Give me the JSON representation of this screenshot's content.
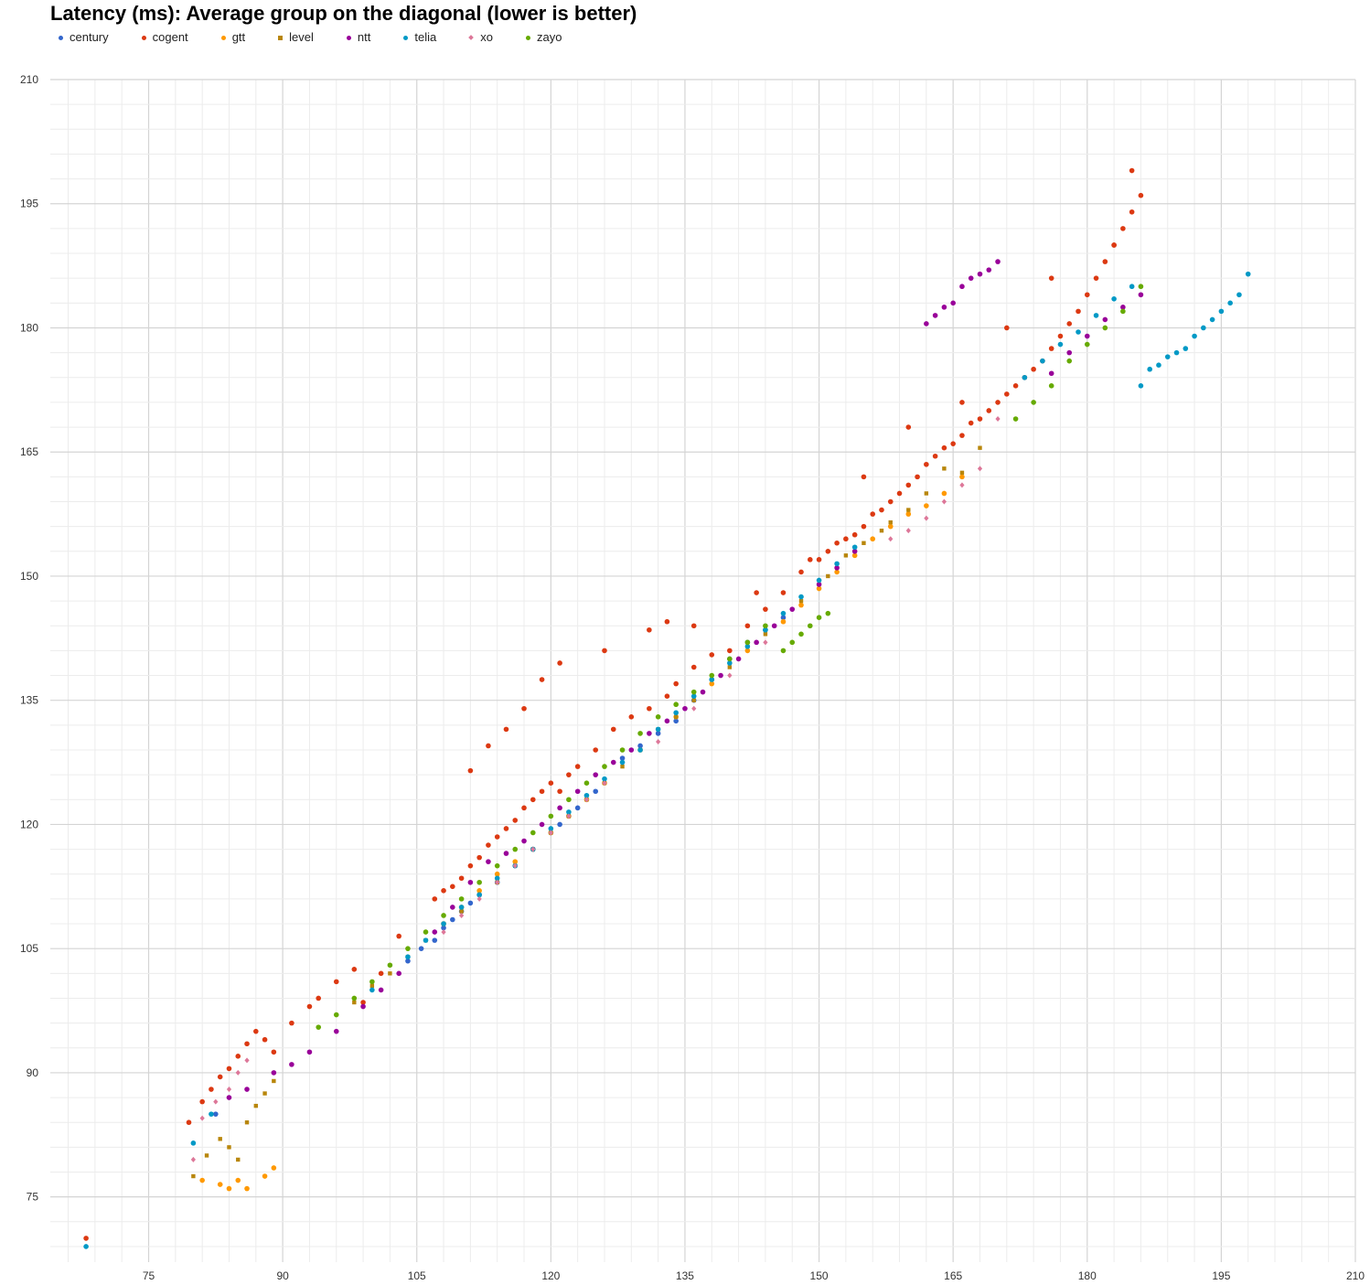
{
  "chart_data": {
    "type": "scatter",
    "title": "Latency (ms): Average group on the diagonal (lower is better)",
    "xlabel": "",
    "ylabel": "",
    "xlim": [
      64,
      210
    ],
    "ylim": [
      68,
      210
    ],
    "xticks": [
      75,
      90,
      105,
      120,
      135,
      150,
      165,
      180,
      195,
      210
    ],
    "yticks": [
      75,
      90,
      105,
      120,
      135,
      150,
      165,
      180,
      195,
      210
    ],
    "grid": true,
    "legend_position": "top-left",
    "series": [
      {
        "name": "century",
        "color": "#3366CC",
        "marker": "circle",
        "x": [
          82.5,
          104.0,
          105.5,
          107.0,
          108.0,
          109.0,
          110.0,
          111.0,
          112.0,
          114.0,
          116.0,
          118.0,
          120.0,
          121.0,
          122.0,
          123.0,
          125.0,
          128.0,
          130.0,
          132.0,
          134.0,
          136.0,
          138.0,
          140.0,
          142.0,
          144.0,
          146.0
        ],
        "y": [
          85.0,
          103.5,
          105.0,
          106.0,
          107.5,
          108.5,
          109.5,
          110.5,
          111.5,
          113.0,
          115.0,
          117.0,
          119.0,
          120.0,
          121.0,
          122.0,
          124.0,
          128.0,
          129.5,
          131.0,
          132.5,
          135.0,
          137.5,
          140.0,
          142.0,
          143.5,
          145.0
        ]
      },
      {
        "name": "cogent",
        "color": "#DC3912",
        "marker": "circle",
        "x": [
          68.0,
          79.5,
          81.0,
          82.0,
          83.0,
          84.0,
          85.0,
          86.0,
          87.0,
          88.0,
          89.0,
          91.0,
          93.0,
          94.0,
          96.0,
          98.0,
          99.0,
          101.0,
          103.0,
          107.0,
          108.0,
          109.0,
          110.0,
          111.0,
          112.0,
          113.0,
          114.0,
          115.0,
          116.0,
          117.0,
          118.0,
          119.0,
          120.0,
          121.0,
          122.0,
          123.0,
          125.0,
          127.0,
          129.0,
          131.0,
          133.0,
          134.0,
          136.0,
          138.0,
          140.0,
          142.0,
          144.0,
          146.0,
          148.0,
          150.0,
          151.0,
          152.0,
          153.0,
          154.0,
          155.0,
          156.0,
          157.0,
          158.0,
          159.0,
          160.0,
          161.0,
          162.0,
          163.0,
          164.0,
          165.0,
          166.0,
          167.0,
          168.0,
          169.0,
          170.0,
          171.0,
          172.0,
          173.0,
          174.0,
          175.0,
          176.0,
          177.0,
          178.0,
          179.0,
          180.0,
          181.0,
          182.0,
          183.0,
          184.0,
          185.0,
          186.0,
          111.0,
          113.0,
          115.0,
          117.0,
          119.0,
          121.0,
          126.0,
          131.0,
          133.0,
          136.0,
          143.0,
          149.0,
          155.0,
          160.0,
          166.0,
          171.0,
          176.0,
          183.0,
          185.0
        ],
        "y": [
          70.0,
          84.0,
          86.5,
          88.0,
          89.5,
          90.5,
          92.0,
          93.5,
          95.0,
          94.0,
          92.5,
          96.0,
          98.0,
          99.0,
          101.0,
          102.5,
          98.5,
          102.0,
          106.5,
          111.0,
          112.0,
          112.5,
          113.5,
          115.0,
          116.0,
          117.5,
          118.5,
          119.5,
          120.5,
          122.0,
          123.0,
          124.0,
          125.0,
          124.0,
          126.0,
          127.0,
          129.0,
          131.5,
          133.0,
          134.0,
          135.5,
          137.0,
          139.0,
          140.5,
          141.0,
          144.0,
          146.0,
          148.0,
          150.5,
          152.0,
          153.0,
          154.0,
          154.5,
          155.0,
          156.0,
          157.5,
          158.0,
          159.0,
          160.0,
          161.0,
          162.0,
          163.5,
          164.5,
          165.5,
          166.0,
          167.0,
          168.5,
          169.0,
          170.0,
          171.0,
          172.0,
          173.0,
          174.0,
          175.0,
          176.0,
          177.5,
          179.0,
          180.5,
          182.0,
          184.0,
          186.0,
          188.0,
          190.0,
          192.0,
          194.0,
          196.0,
          126.5,
          129.5,
          131.5,
          134.0,
          137.5,
          139.5,
          141.0,
          143.5,
          144.5,
          144.0,
          148.0,
          152.0,
          162.0,
          168.0,
          171.0,
          180.0,
          186.0,
          190.0,
          199.0
        ]
      },
      {
        "name": "gtt",
        "color": "#FF9900",
        "marker": "circle",
        "x": [
          81.0,
          83.0,
          84.0,
          85.0,
          86.0,
          88.0,
          89.0,
          108.0,
          110.0,
          112.0,
          114.0,
          116.0,
          118.0,
          120.0,
          122.0,
          124.0,
          126.0,
          130.0,
          134.0,
          138.0,
          142.0,
          146.0,
          148.0,
          150.0,
          152.0,
          154.0,
          156.0,
          158.0,
          160.0,
          162.0,
          164.0,
          166.0
        ],
        "y": [
          77.0,
          76.5,
          76.0,
          77.0,
          76.0,
          77.5,
          78.5,
          108.0,
          110.0,
          112.0,
          114.0,
          115.5,
          117.0,
          119.0,
          121.0,
          123.0,
          125.0,
          129.0,
          133.0,
          137.0,
          141.0,
          144.5,
          146.5,
          148.5,
          150.5,
          152.5,
          154.5,
          156.0,
          157.5,
          158.5,
          160.0,
          162.0
        ]
      },
      {
        "name": "level",
        "color": "#B8860B",
        "marker": "square",
        "x": [
          80.0,
          81.5,
          83.0,
          84.0,
          85.0,
          86.0,
          87.0,
          88.0,
          89.0,
          98.0,
          100.0,
          102.0,
          104.0,
          106.0,
          108.0,
          110.0,
          112.0,
          114.0,
          116.0,
          118.0,
          120.0,
          122.0,
          124.0,
          126.0,
          128.0,
          130.0,
          132.0,
          134.0,
          136.0,
          140.0,
          144.0,
          148.0,
          151.0,
          153.0,
          155.0,
          157.0,
          158.0,
          160.0,
          162.0,
          164.0,
          166.0,
          168.0
        ],
        "y": [
          77.5,
          80.0,
          82.0,
          81.0,
          79.5,
          84.0,
          86.0,
          87.5,
          89.0,
          98.5,
          100.5,
          102.0,
          104.0,
          106.0,
          108.0,
          109.5,
          111.5,
          113.0,
          115.0,
          117.0,
          119.0,
          121.0,
          123.0,
          125.0,
          127.0,
          129.0,
          131.5,
          133.0,
          135.0,
          139.0,
          143.0,
          147.0,
          150.0,
          152.5,
          154.0,
          155.5,
          156.5,
          158.0,
          160.0,
          163.0,
          162.5,
          165.5
        ]
      },
      {
        "name": "ntt",
        "color": "#990099",
        "marker": "circle",
        "x": [
          84.0,
          86.0,
          89.0,
          91.0,
          93.0,
          96.0,
          99.0,
          101.0,
          103.0,
          107.0,
          109.0,
          111.0,
          113.0,
          115.0,
          117.0,
          119.0,
          121.0,
          123.0,
          125.0,
          127.0,
          129.0,
          131.0,
          133.0,
          135.0,
          137.0,
          139.0,
          141.0,
          143.0,
          145.0,
          147.0,
          150.0,
          152.0,
          154.0,
          162.0,
          163.0,
          164.0,
          165.0,
          166.0,
          167.0,
          168.0,
          169.0,
          170.0,
          176.0,
          178.0,
          180.0,
          182.0,
          184.0,
          186.0
        ],
        "y": [
          87.0,
          88.0,
          90.0,
          91.0,
          92.5,
          95.0,
          98.0,
          100.0,
          102.0,
          107.0,
          110.0,
          113.0,
          115.5,
          116.5,
          118.0,
          120.0,
          122.0,
          124.0,
          126.0,
          127.5,
          129.0,
          131.0,
          132.5,
          134.0,
          136.0,
          138.0,
          140.0,
          142.0,
          144.0,
          146.0,
          149.0,
          151.0,
          153.0,
          180.5,
          181.5,
          182.5,
          183.0,
          185.0,
          186.0,
          186.5,
          187.0,
          188.0,
          174.5,
          177.0,
          179.0,
          181.0,
          182.5,
          184.0
        ]
      },
      {
        "name": "telia",
        "color": "#0099C6",
        "marker": "circle",
        "x": [
          68.0,
          80.0,
          82.0,
          100.0,
          104.0,
          106.0,
          108.0,
          110.0,
          112.0,
          114.0,
          116.0,
          118.0,
          120.0,
          122.0,
          124.0,
          126.0,
          128.0,
          130.0,
          132.0,
          134.0,
          136.0,
          138.0,
          140.0,
          142.0,
          144.0,
          146.0,
          148.0,
          150.0,
          152.0,
          154.0,
          173.0,
          175.0,
          177.0,
          179.0,
          181.0,
          183.0,
          185.0,
          186.0,
          187.0,
          188.0,
          189.0,
          190.0,
          191.0,
          192.0,
          193.0,
          194.0,
          195.0,
          196.0,
          197.0,
          198.0
        ],
        "y": [
          69.0,
          81.5,
          85.0,
          100.0,
          104.0,
          106.0,
          108.0,
          110.0,
          111.5,
          113.5,
          115.0,
          117.0,
          119.5,
          121.5,
          123.5,
          125.5,
          127.5,
          129.0,
          131.5,
          133.5,
          135.5,
          137.5,
          139.5,
          141.5,
          143.5,
          145.5,
          147.5,
          149.5,
          151.5,
          153.5,
          174.0,
          176.0,
          178.0,
          179.5,
          181.5,
          183.5,
          185.0,
          173.0,
          175.0,
          175.5,
          176.5,
          177.0,
          177.5,
          179.0,
          180.0,
          181.0,
          182.0,
          183.0,
          184.0,
          186.5
        ]
      },
      {
        "name": "xo",
        "color": "#DD7799",
        "marker": "diamond",
        "x": [
          80.0,
          81.0,
          82.5,
          84.0,
          85.0,
          86.0,
          108.0,
          110.0,
          112.0,
          114.0,
          116.0,
          118.0,
          120.0,
          122.0,
          124.0,
          126.0,
          132.0,
          136.0,
          140.0,
          144.0,
          158.0,
          160.0,
          162.0,
          164.0,
          166.0,
          168.0,
          170.0,
          178.0,
          180.0,
          182.0,
          184.0
        ],
        "y": [
          79.5,
          84.5,
          86.5,
          88.0,
          90.0,
          91.5,
          107.0,
          109.0,
          111.0,
          113.0,
          115.0,
          117.0,
          119.0,
          121.0,
          123.0,
          125.0,
          130.0,
          134.0,
          138.0,
          142.0,
          154.5,
          155.5,
          157.0,
          159.0,
          161.0,
          163.0,
          169.0,
          176.0,
          178.0,
          180.0,
          182.0
        ]
      },
      {
        "name": "zayo",
        "color": "#66AA00",
        "marker": "circle",
        "x": [
          94.0,
          96.0,
          98.0,
          100.0,
          102.0,
          104.0,
          106.0,
          108.0,
          110.0,
          112.0,
          114.0,
          116.0,
          118.0,
          120.0,
          122.0,
          124.0,
          126.0,
          128.0,
          130.0,
          132.0,
          134.0,
          136.0,
          138.0,
          140.0,
          142.0,
          144.0,
          146.0,
          147.0,
          148.0,
          149.0,
          150.0,
          151.0,
          172.0,
          174.0,
          176.0,
          178.0,
          180.0,
          182.0,
          184.0,
          186.0
        ],
        "y": [
          95.5,
          97.0,
          99.0,
          101.0,
          103.0,
          105.0,
          107.0,
          109.0,
          111.0,
          113.0,
          115.0,
          117.0,
          119.0,
          121.0,
          123.0,
          125.0,
          127.0,
          129.0,
          131.0,
          133.0,
          134.5,
          136.0,
          138.0,
          140.0,
          142.0,
          144.0,
          141.0,
          142.0,
          143.0,
          144.0,
          145.0,
          145.5,
          169.0,
          171.0,
          173.0,
          176.0,
          178.0,
          180.0,
          182.0,
          185.0
        ]
      }
    ]
  }
}
